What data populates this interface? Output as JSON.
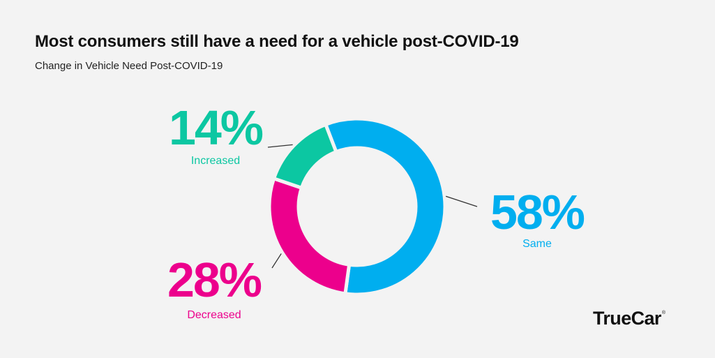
{
  "chart_data": {
    "type": "pie",
    "variant": "donut",
    "title": "Most consumers still have a need for a vehicle post-COVID-19",
    "subtitle": "Change in Vehicle Need Post-COVID-19",
    "categories": [
      "Same",
      "Decreased",
      "Increased"
    ],
    "values": [
      58,
      28,
      14
    ],
    "value_labels": [
      "58%",
      "28%",
      "14%"
    ],
    "colors": [
      "#00aeef",
      "#ec008c",
      "#0cc7a2"
    ],
    "legend": "none"
  },
  "brand": {
    "name": "TrueCar",
    "mark": "®"
  }
}
